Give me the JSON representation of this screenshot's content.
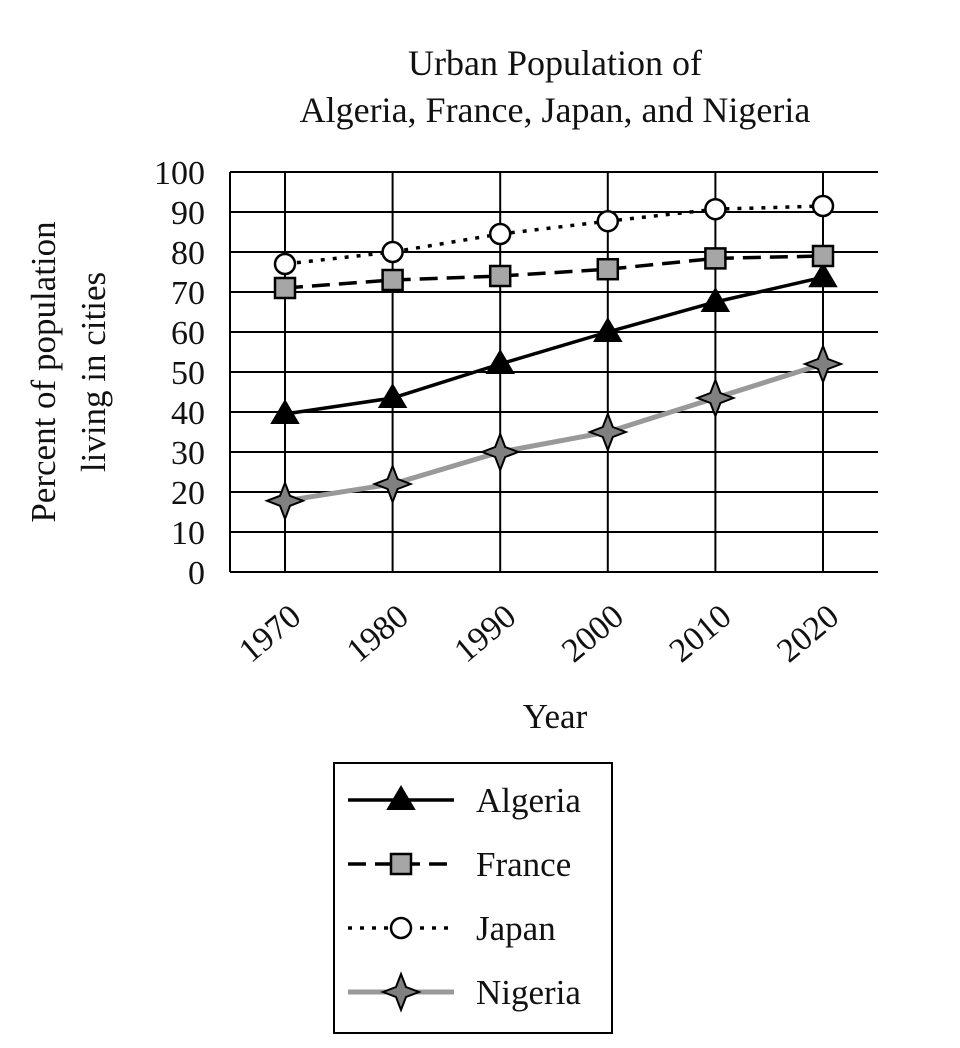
{
  "chart_data": {
    "type": "line",
    "title_lines": [
      "Urban Population of",
      "Algeria, France, Japan, and Nigeria"
    ],
    "xlabel": "Year",
    "ylabel_lines": [
      "Percent of population",
      "living in cities"
    ],
    "categories": [
      "1970",
      "1980",
      "1990",
      "2000",
      "2010",
      "2020"
    ],
    "y_ticks": [
      "0",
      "10",
      "20",
      "30",
      "40",
      "50",
      "60",
      "70",
      "80",
      "90",
      "100"
    ],
    "ylim": [
      0,
      100
    ],
    "grid": true,
    "legend_position": "bottom-center",
    "series": [
      {
        "name": "Algeria",
        "values": [
          39.5,
          43.5,
          52,
          60,
          67.5,
          73.7
        ],
        "marker": "triangle",
        "line_style": "solid",
        "color": "#000000",
        "marker_fill": "#000000"
      },
      {
        "name": "France",
        "values": [
          71,
          73,
          74,
          75.7,
          78.4,
          79
        ],
        "marker": "square",
        "line_style": "dashed",
        "color": "#000000",
        "marker_fill": "#a6a6a6"
      },
      {
        "name": "Japan",
        "values": [
          77,
          80,
          84.5,
          87.7,
          90.7,
          91.5
        ],
        "marker": "circle",
        "line_style": "dotted",
        "color": "#000000",
        "marker_fill": "#ffffff"
      },
      {
        "name": "Nigeria",
        "values": [
          17.8,
          22,
          30,
          35,
          43.5,
          52
        ],
        "marker": "star",
        "line_style": "solid",
        "color": "#999999",
        "marker_fill": "#808080"
      }
    ]
  }
}
